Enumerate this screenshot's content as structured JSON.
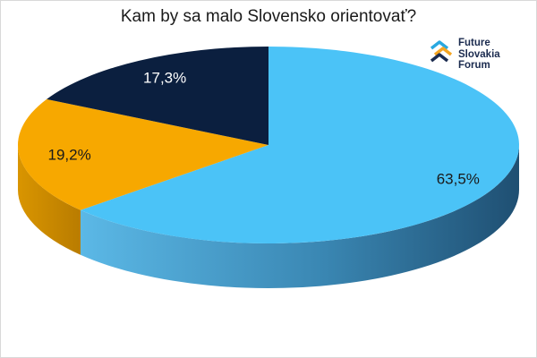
{
  "title": "Kam by sa malo Slovensko  orientovať?",
  "logo": {
    "lines": [
      "Future",
      "Slovakia",
      "Forum"
    ],
    "icon": "future-slovakia-forum-logo-icon"
  },
  "colors": {
    "light_blue": "#4bc3f7",
    "orange": "#f7a800",
    "navy": "#0b1f3f"
  },
  "chart_data": {
    "type": "pie",
    "title": "Kam by sa malo Slovensko  orientovať?",
    "style": "3d",
    "slices": [
      {
        "value": 63.5,
        "label": "63,5%",
        "color": "#4bc3f7",
        "side_color": "#2d6f93"
      },
      {
        "value": 19.2,
        "label": "19,2%",
        "color": "#f7a800",
        "side_color": "#b97c00"
      },
      {
        "value": 17.3,
        "label": "17,3%",
        "color": "#0b1f3f",
        "side_color": "#061226"
      }
    ],
    "legend": "none"
  }
}
